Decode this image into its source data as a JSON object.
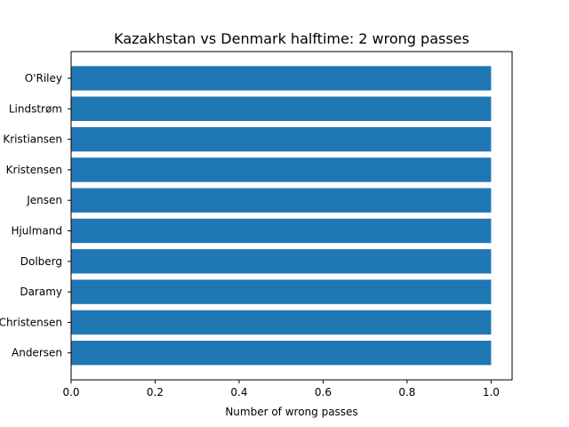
{
  "chart_data": {
    "type": "bar",
    "orientation": "horizontal",
    "title": "Kazakhstan vs Denmark halftime: 2 wrong passes",
    "xlabel": "Number of wrong passes",
    "ylabel": "",
    "categories": [
      "O'Riley",
      "Lindstrøm",
      "Kristiansen",
      "Kristensen",
      "Jensen",
      "Hjulmand",
      "Dolberg",
      "Daramy",
      "Christensen",
      "Andersen"
    ],
    "values": [
      1,
      1,
      1,
      1,
      1,
      1,
      1,
      1,
      1,
      1
    ],
    "xlim": [
      0,
      1.05
    ],
    "xticks": [
      0.0,
      0.2,
      0.4,
      0.6,
      0.8,
      1.0
    ],
    "xtick_labels": [
      "0.0",
      "0.2",
      "0.4",
      "0.6",
      "0.8",
      "1.0"
    ],
    "bar_color": "#1f77b4",
    "grid": false,
    "legend": "none"
  }
}
